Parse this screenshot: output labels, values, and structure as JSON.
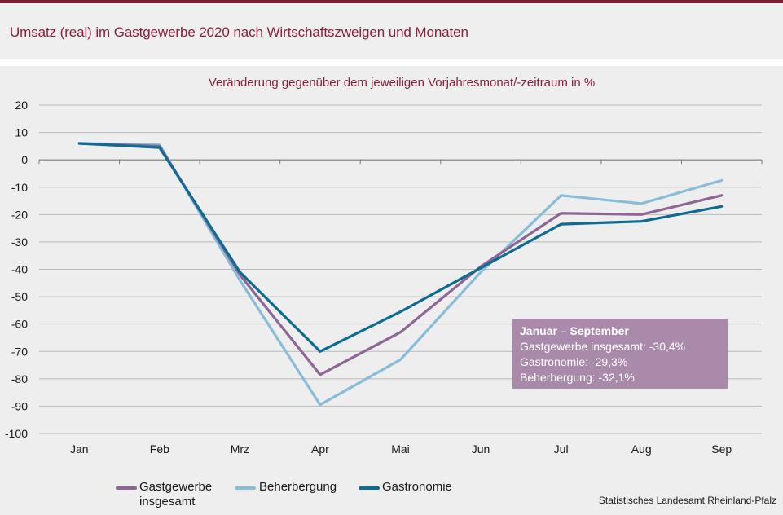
{
  "title": "Umsatz (real) im Gastgewerbe 2020 nach Wirtschaftszweigen und Monaten",
  "source": "Statistisches Landesamt Rheinland-Pfalz",
  "infobox": {
    "heading": "Januar – September",
    "lines": [
      "Gastgewerbe insgesamt: -30,4%",
      "Gastronomie: -29,3%",
      "Beherbergung: -32,1%"
    ]
  },
  "colors": {
    "title": "#8a1e3c",
    "gastgewerbe": "#8d6696",
    "beherbergung": "#88bcd8",
    "gastronomie": "#0e6b92",
    "infobox": "#a98aaa"
  },
  "chart_data": {
    "type": "line",
    "title": "Veränderung gegenüber dem jeweiligen Vorjahresmonat/-zeitraum in %",
    "categories": [
      "Jan",
      "Feb",
      "Mrz",
      "Apr",
      "Mai",
      "Jun",
      "Jul",
      "Aug",
      "Sep"
    ],
    "ylim": [
      -100,
      20
    ],
    "yticks": [
      20,
      10,
      0,
      -10,
      -20,
      -30,
      -40,
      -50,
      -60,
      -70,
      -80,
      -90,
      -100
    ],
    "grid": true,
    "legend_position": "bottom-left",
    "series": [
      {
        "name": "Gastgewerbe insgesamt",
        "legend_lines": [
          "Gastgewerbe",
          "insgesamt"
        ],
        "color": "#8d6696",
        "values": [
          6,
          5,
          -42,
          -78.5,
          -63,
          -39,
          -19.5,
          -20,
          -13
        ]
      },
      {
        "name": "Beherbergung",
        "legend_lines": [
          "Beherbergung"
        ],
        "color": "#88bcd8",
        "values": [
          6,
          5.5,
          -44,
          -89.5,
          -73,
          -41,
          -13,
          -16,
          -7.5
        ]
      },
      {
        "name": "Gastronomie",
        "legend_lines": [
          "Gastronomie"
        ],
        "color": "#0e6b92",
        "values": [
          6,
          4.5,
          -41,
          -70,
          -55.5,
          -39.5,
          -23.5,
          -22.5,
          -17
        ]
      }
    ]
  }
}
